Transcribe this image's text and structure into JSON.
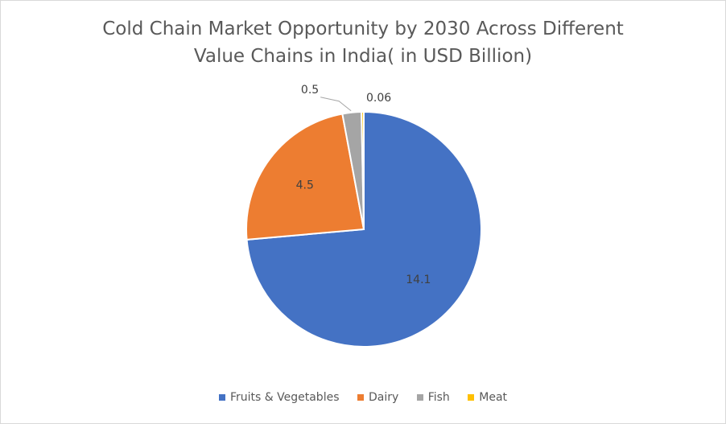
{
  "chart_data": {
    "type": "pie",
    "title_line1": "Cold Chain Market Opportunity by 2030 Across Different",
    "title_line2": "Value Chains in India( in USD Billion)",
    "categories": [
      "Fruits & Vegetables",
      "Dairy",
      "Fish",
      "Meat"
    ],
    "values": [
      14.1,
      4.5,
      0.5,
      0.06
    ],
    "labels": [
      "14.1",
      "4.5",
      "0.5",
      "0.06"
    ],
    "colors": [
      "#4472c4",
      "#ed7d31",
      "#a5a5a5",
      "#ffc000"
    ],
    "legend_position": "bottom"
  }
}
